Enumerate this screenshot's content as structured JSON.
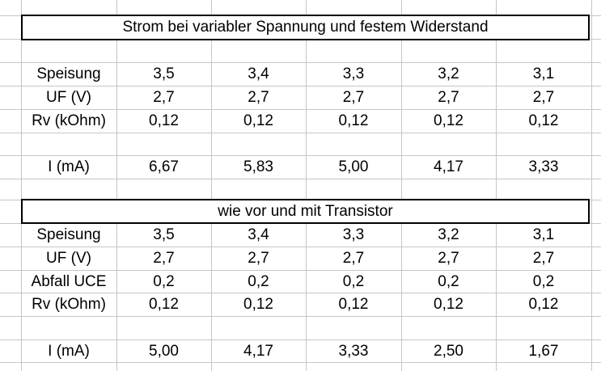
{
  "table1": {
    "title": "Strom bei variabler Spannung und festem Widerstand",
    "rows": [
      {
        "label": "Speisung",
        "values": [
          "3,5",
          "3,4",
          "3,3",
          "3,2",
          "3,1"
        ]
      },
      {
        "label": "UF (V)",
        "values": [
          "2,7",
          "2,7",
          "2,7",
          "2,7",
          "2,7"
        ]
      },
      {
        "label": "Rv (kOhm)",
        "values": [
          "0,12",
          "0,12",
          "0,12",
          "0,12",
          "0,12"
        ]
      },
      {
        "label": "I (mA)",
        "values": [
          "6,67",
          "5,83",
          "5,00",
          "4,17",
          "3,33"
        ]
      }
    ]
  },
  "table2": {
    "title": "wie vor und mit Transistor",
    "rows": [
      {
        "label": "Speisung",
        "values": [
          "3,5",
          "3,4",
          "3,3",
          "3,2",
          "3,1"
        ]
      },
      {
        "label": "UF (V)",
        "values": [
          "2,7",
          "2,7",
          "2,7",
          "2,7",
          "2,7"
        ]
      },
      {
        "label": "Abfall UCE",
        "values": [
          "0,2",
          "0,2",
          "0,2",
          "0,2",
          "0,2"
        ]
      },
      {
        "label": "Rv (kOhm)",
        "values": [
          "0,12",
          "0,12",
          "0,12",
          "0,12",
          "0,12"
        ]
      },
      {
        "label": "I (mA)",
        "values": [
          "5,00",
          "4,17",
          "3,33",
          "2,50",
          "1,67"
        ]
      }
    ]
  }
}
